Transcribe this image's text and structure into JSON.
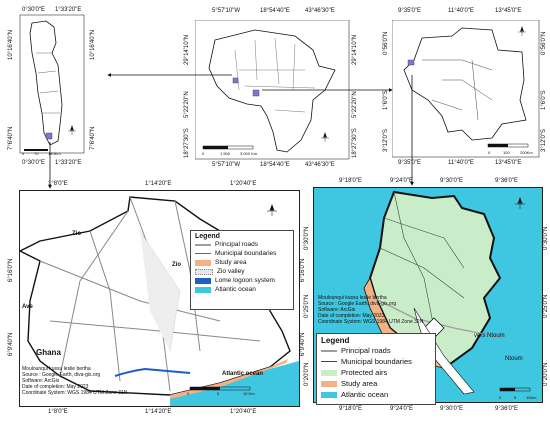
{
  "top_left_map": {
    "coords_top": [
      "0°30'0\"E",
      "1°33'20\"E"
    ],
    "coords_bottom": [
      "0°30'0\"E",
      "1°33'20\"E"
    ],
    "coords_left": [
      "10°16'40\"N",
      "7°6'40\"N"
    ],
    "coords_right": [
      "10°16'40\"N",
      "7°6'40\"N"
    ],
    "scale": [
      "0",
      "70",
      "140Km"
    ]
  },
  "top_center_map": {
    "coords_top": [
      "5°57'10\"W",
      "18°54'40\"E",
      "43°46'30\"E"
    ],
    "coords_bottom": [
      "5°57'10\"W",
      "18°54'40\"E",
      "43°46'30\"E"
    ],
    "coords_left": [
      "29°14'10\"N",
      "5°22'20\"N",
      "18°27'30\"S"
    ],
    "coords_right": [
      "29°14'10\"N",
      "5°22'20\"N",
      "18°27'30\"S"
    ],
    "scale": [
      "0",
      "1 500",
      "3 000 Km"
    ]
  },
  "top_right_map": {
    "coords_top": [
      "9°35'0\"E",
      "11°40'0\"E",
      "13°45'0\"E"
    ],
    "coords_bottom": [
      "9°35'0\"E",
      "11°40'0\"E",
      "13°45'0\"E"
    ],
    "coords_left": [
      "0°56'0\"N",
      "1°6'0\"S",
      "3°12'0\"S"
    ],
    "coords_right": [
      "0°56'0\"N",
      "1°6'0\"S",
      "3°12'0\"S"
    ],
    "scale": [
      "0",
      "100",
      "200Km"
    ]
  },
  "lome_map": {
    "coords_top": [
      "1°8'0\"E",
      "1°14'20\"E",
      "1°20'40\"E"
    ],
    "coords_bottom": [
      "1°8'0\"E",
      "1°14'20\"E",
      "1°20'40\"E"
    ],
    "coords_left": [
      "6°16'0\"N",
      "6°9'40\"N"
    ],
    "coords_right": [
      "6°16'0\"N",
      "6°9'40\"N"
    ],
    "places": {
      "zio1": "Zio",
      "zio2": "Zio",
      "ave": "Ave",
      "ghana": "Ghana",
      "atlantic": "Atlantic ocean"
    },
    "legend": {
      "title": "Legend",
      "items": [
        {
          "label": "Principal roads",
          "color": "#9e9e9e"
        },
        {
          "label": "Municipal boundaries",
          "color": "#666666"
        },
        {
          "label": "Study area",
          "color": "#f4b183"
        },
        {
          "label": "Zio valley",
          "color": "#e8e8e8"
        },
        {
          "label": "Lome logoon system",
          "color": "#1f5fbf"
        },
        {
          "label": "Atlantic ocean",
          "color": "#3fc6e0"
        }
      ]
    },
    "credits": [
      "Moulounqui kussu leslie bertha",
      "Source : Google Earth, diva-gis.org",
      "Software: ArcGis",
      "Date of completion: May 2023",
      "Coordinate System: WGS 1984 UTM Zone 31N"
    ],
    "scale": [
      "0",
      "5",
      "10 Km"
    ]
  },
  "ntoum_map": {
    "coords_top": [
      "9°18'0\"E",
      "9°24'0\"E",
      "9°30'0\"E",
      "9°36'0\"E"
    ],
    "coords_bottom": [
      "9°18'0\"E",
      "9°24'0\"E",
      "9°30'0\"E",
      "9°36'0\"E"
    ],
    "coords_left": [
      "0°30'0\"N",
      "0°25'0\"N",
      "0°20'0\"N"
    ],
    "coords_right": [
      "0°30'0\"N",
      "0°25'0\"N",
      "0°20'0\"N"
    ],
    "places": {
      "vers": "vers Ntoum",
      "ntoum": "Ntoum"
    },
    "legend": {
      "title": "Legend",
      "items": [
        {
          "label": "Principal roads",
          "color": "#9e9e9e"
        },
        {
          "label": "Municipal boundaries",
          "color": "#444444"
        },
        {
          "label": "Protected airs",
          "color": "#c9ecc9"
        },
        {
          "label": "Study area",
          "color": "#f4b183"
        },
        {
          "label": "Atlantic ocean",
          "color": "#3fc6e0"
        }
      ]
    },
    "credits": [
      "Moulounqui kussu leslie bertha",
      "Source : Google Earth, diva-gis.org",
      "Software: ArcGis",
      "Date of completion: May 2023",
      "Coordinate System: WGS 1984 UTM Zone 32N"
    ],
    "scale": [
      "0",
      "5",
      "10Km"
    ]
  },
  "colors": {
    "ocean": "#3fc6e0",
    "forest": "#c9ecc9",
    "study": "#f4b183",
    "lagoon": "#1f5fbf"
  },
  "icons": [
    "north-arrow-icon",
    "arrow-icon"
  ]
}
